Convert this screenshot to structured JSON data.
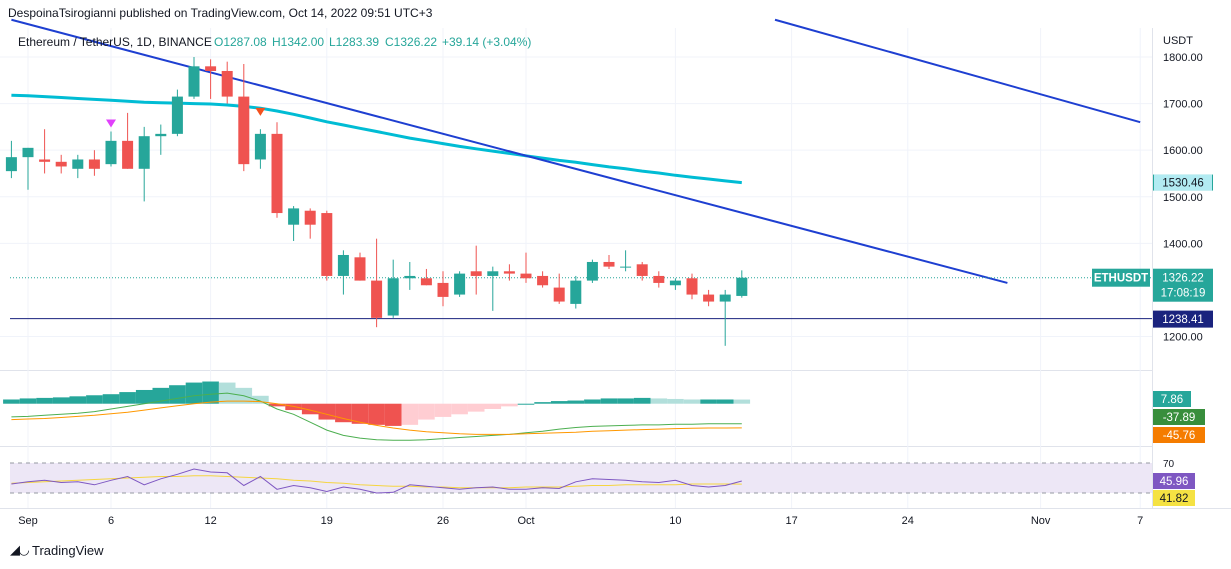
{
  "publisher_line": "DespoinaTsirogianni published on TradingView.com, Oct 14, 2022 09:51 UTC+3",
  "logo_text": "TradingView",
  "logo_icon": "tradingview-logo-icon",
  "colors": {
    "up": "#26a69a",
    "down": "#ef5350",
    "ma": "#00bcd4",
    "trendline": "#1e3fd1",
    "support": "#1a237e",
    "macd_line": "#4caf50",
    "signal_line": "#ff9800",
    "rsi_line": "#7e57c2",
    "rsi_ma": "#f5d540",
    "rsi_band": "#ede7f6"
  },
  "chart_data": {
    "type": "candlestick",
    "symbol_header": {
      "name": "Ethereum / TetherUS, 1D, BINANCE",
      "open": "O1287.08",
      "high": "H1342.00",
      "low": "L1283.39",
      "close": "C1326.22",
      "change": "+39.14 (+3.04%)"
    },
    "price_axis_title": "USDT",
    "y_ticks": [
      1800,
      1700,
      1600,
      1500,
      1400,
      1200
    ],
    "ylim": [
      1150,
      1880
    ],
    "x_tick_labels": [
      "Sep",
      "6",
      "12",
      "19",
      "26",
      "Oct",
      "10",
      "17",
      "24",
      "Nov",
      "7"
    ],
    "x_tick_dates": [
      "2022-09-01",
      "2022-09-06",
      "2022-09-12",
      "2022-09-19",
      "2022-09-26",
      "2022-10-01",
      "2022-10-10",
      "2022-10-17",
      "2022-10-24",
      "2022-11-01",
      "2022-11-07"
    ],
    "candles": [
      {
        "date": "2022-08-31",
        "o": 1555,
        "h": 1620,
        "l": 1540,
        "c": 1585
      },
      {
        "date": "2022-09-01",
        "o": 1585,
        "h": 1605,
        "l": 1515,
        "c": 1605
      },
      {
        "date": "2022-09-02",
        "o": 1580,
        "h": 1645,
        "l": 1550,
        "c": 1575
      },
      {
        "date": "2022-09-03",
        "o": 1575,
        "h": 1590,
        "l": 1550,
        "c": 1565
      },
      {
        "date": "2022-09-04",
        "o": 1560,
        "h": 1590,
        "l": 1540,
        "c": 1580
      },
      {
        "date": "2022-09-05",
        "o": 1580,
        "h": 1600,
        "l": 1545,
        "c": 1560
      },
      {
        "date": "2022-09-06",
        "o": 1570,
        "h": 1640,
        "l": 1565,
        "c": 1620
      },
      {
        "date": "2022-09-07",
        "o": 1620,
        "h": 1680,
        "l": 1560,
        "c": 1560
      },
      {
        "date": "2022-09-08",
        "o": 1560,
        "h": 1650,
        "l": 1490,
        "c": 1630
      },
      {
        "date": "2022-09-09",
        "o": 1630,
        "h": 1655,
        "l": 1590,
        "c": 1635
      },
      {
        "date": "2022-09-10",
        "o": 1635,
        "h": 1730,
        "l": 1630,
        "c": 1715
      },
      {
        "date": "2022-09-11",
        "o": 1715,
        "h": 1800,
        "l": 1710,
        "c": 1780
      },
      {
        "date": "2022-09-12",
        "o": 1780,
        "h": 1795,
        "l": 1710,
        "c": 1770
      },
      {
        "date": "2022-09-13",
        "o": 1770,
        "h": 1790,
        "l": 1700,
        "c": 1715
      },
      {
        "date": "2022-09-14",
        "o": 1715,
        "h": 1785,
        "l": 1555,
        "c": 1570
      },
      {
        "date": "2022-09-15",
        "o": 1580,
        "h": 1645,
        "l": 1560,
        "c": 1635
      },
      {
        "date": "2022-09-16",
        "o": 1635,
        "h": 1660,
        "l": 1455,
        "c": 1465
      },
      {
        "date": "2022-09-17",
        "o": 1440,
        "h": 1480,
        "l": 1405,
        "c": 1475
      },
      {
        "date": "2022-09-18",
        "o": 1470,
        "h": 1475,
        "l": 1410,
        "c": 1440
      },
      {
        "date": "2022-09-19",
        "o": 1465,
        "h": 1470,
        "l": 1320,
        "c": 1330
      },
      {
        "date": "2022-09-20",
        "o": 1330,
        "h": 1385,
        "l": 1290,
        "c": 1375
      },
      {
        "date": "2022-09-21",
        "o": 1370,
        "h": 1380,
        "l": 1320,
        "c": 1320
      },
      {
        "date": "2022-09-22",
        "o": 1320,
        "h": 1410,
        "l": 1220,
        "c": 1240
      },
      {
        "date": "2022-09-23",
        "o": 1245,
        "h": 1365,
        "l": 1240,
        "c": 1325
      },
      {
        "date": "2022-09-24",
        "o": 1325,
        "h": 1360,
        "l": 1300,
        "c": 1330
      },
      {
        "date": "2022-09-25",
        "o": 1325,
        "h": 1345,
        "l": 1310,
        "c": 1310
      },
      {
        "date": "2022-09-26",
        "o": 1315,
        "h": 1340,
        "l": 1265,
        "c": 1285
      },
      {
        "date": "2022-09-27",
        "o": 1290,
        "h": 1340,
        "l": 1285,
        "c": 1335
      },
      {
        "date": "2022-09-28",
        "o": 1340,
        "h": 1395,
        "l": 1290,
        "c": 1330
      },
      {
        "date": "2022-09-29",
        "o": 1330,
        "h": 1350,
        "l": 1255,
        "c": 1340
      },
      {
        "date": "2022-09-30",
        "o": 1340,
        "h": 1355,
        "l": 1320,
        "c": 1335
      },
      {
        "date": "2022-10-01",
        "o": 1335,
        "h": 1380,
        "l": 1315,
        "c": 1325
      },
      {
        "date": "2022-10-02",
        "o": 1330,
        "h": 1340,
        "l": 1305,
        "c": 1310
      },
      {
        "date": "2022-10-03",
        "o": 1305,
        "h": 1335,
        "l": 1270,
        "c": 1275
      },
      {
        "date": "2022-10-04",
        "o": 1270,
        "h": 1330,
        "l": 1260,
        "c": 1320
      },
      {
        "date": "2022-10-05",
        "o": 1320,
        "h": 1365,
        "l": 1315,
        "c": 1360
      },
      {
        "date": "2022-10-06",
        "o": 1360,
        "h": 1375,
        "l": 1345,
        "c": 1350
      },
      {
        "date": "2022-10-07",
        "o": 1350,
        "h": 1385,
        "l": 1340,
        "c": 1350
      },
      {
        "date": "2022-10-08",
        "o": 1355,
        "h": 1360,
        "l": 1320,
        "c": 1330
      },
      {
        "date": "2022-10-09",
        "o": 1330,
        "h": 1340,
        "l": 1305,
        "c": 1315
      },
      {
        "date": "2022-10-10",
        "o": 1310,
        "h": 1325,
        "l": 1300,
        "c": 1320
      },
      {
        "date": "2022-10-11",
        "o": 1325,
        "h": 1335,
        "l": 1280,
        "c": 1290
      },
      {
        "date": "2022-10-12",
        "o": 1290,
        "h": 1300,
        "l": 1265,
        "c": 1275
      },
      {
        "date": "2022-10-13",
        "o": 1275,
        "h": 1300,
        "l": 1180,
        "c": 1290
      },
      {
        "date": "2022-10-14",
        "o": 1287.08,
        "h": 1342,
        "l": 1283.39,
        "c": 1326.22
      }
    ],
    "moving_average": {
      "values": [
        1718,
        1717,
        1715,
        1713,
        1711,
        1709,
        1707,
        1705,
        1703,
        1702,
        1701,
        1700,
        1699,
        1697,
        1694,
        1690,
        1684,
        1677,
        1669,
        1661,
        1654,
        1647,
        1640,
        1633,
        1626,
        1620,
        1614,
        1608,
        1603,
        1598,
        1593,
        1588,
        1583,
        1578,
        1574,
        1569,
        1564,
        1560,
        1555,
        1551,
        1546,
        1542,
        1538,
        1534,
        1530.46
      ]
    },
    "trendlines": [
      {
        "start": {
          "date": "2022-08-31",
          "price": 1880
        },
        "end": {
          "date": "2022-10-30",
          "price": 1315
        }
      },
      {
        "start": {
          "date": "2022-10-16",
          "price": 1880
        },
        "end": {
          "date": "2022-11-07",
          "price": 1660
        }
      }
    ],
    "horizontal_support": 1238.41,
    "current_price_line": 1326.22,
    "markers": [
      {
        "date": "2022-09-06",
        "type": "up",
        "price": 1655
      },
      {
        "date": "2022-09-15",
        "type": "down",
        "price": 1680
      }
    ],
    "price_labels": {
      "ma": "1530.46",
      "symbol": "ETHUSDT",
      "last": "1326.22",
      "countdown": "17:08:19",
      "support": "1238.41"
    },
    "macd": {
      "labels": {
        "histogram": "7.86",
        "macd": "-37.89",
        "signal": "-45.76"
      },
      "histogram": [
        8,
        10,
        11,
        12,
        14,
        16,
        18,
        22,
        26,
        30,
        35,
        40,
        42,
        40,
        30,
        15,
        -5,
        -12,
        -20,
        -30,
        -35,
        -38,
        -40,
        -42,
        -40,
        -30,
        -25,
        -20,
        -15,
        -10,
        -5,
        0,
        3,
        5,
        6,
        8,
        10,
        10,
        11,
        10,
        9,
        8,
        8,
        8,
        7.86
      ],
      "macd_line": [
        -25,
        -24,
        -22,
        -20,
        -18,
        -15,
        -10,
        -5,
        0,
        5,
        10,
        15,
        18,
        20,
        15,
        5,
        -10,
        -20,
        -35,
        -50,
        -60,
        -65,
        -68,
        -69,
        -69,
        -68,
        -66,
        -64,
        -62,
        -60,
        -58,
        -55,
        -52,
        -48,
        -45,
        -43,
        -42,
        -41,
        -40,
        -40,
        -39,
        -39,
        -38,
        -38,
        -37.89
      ],
      "signal_line": [
        -30,
        -29,
        -28,
        -26,
        -24,
        -22,
        -19,
        -16,
        -12,
        -8,
        -4,
        0,
        3,
        5,
        5,
        4,
        0,
        -5,
        -12,
        -20,
        -28,
        -35,
        -41,
        -46,
        -50,
        -53,
        -55,
        -57,
        -58,
        -58,
        -58,
        -57,
        -56,
        -55,
        -54,
        -52,
        -51,
        -50,
        -49,
        -48,
        -47,
        -46.5,
        -46,
        -45.9,
        -45.76
      ],
      "ylim": [
        -80,
        60
      ]
    },
    "rsi": {
      "labels": {
        "rsi": "45.96",
        "rsi_ma": "41.82",
        "upper_band": "70",
        "lower_band": "30"
      },
      "upper_band": 70,
      "lower_band": 30,
      "values": [
        42,
        45,
        47,
        44,
        45,
        41,
        47,
        52,
        41,
        49,
        55,
        62,
        58,
        57,
        40,
        52,
        35,
        40,
        37,
        32,
        38,
        35,
        30,
        31,
        41,
        39,
        37,
        35,
        37,
        38,
        35,
        35,
        37,
        36,
        45,
        49,
        48,
        47,
        45,
        44,
        47,
        40,
        38,
        40,
        45.96
      ],
      "ma_values": [
        43,
        44,
        45,
        46,
        47,
        48,
        49,
        50,
        51,
        52,
        52,
        53,
        53,
        52,
        51,
        50,
        49,
        47,
        46,
        44,
        43,
        41,
        40,
        39,
        39,
        38,
        38,
        37,
        37,
        37,
        37,
        38,
        38,
        38,
        39,
        40,
        40,
        41,
        41,
        41,
        41,
        42,
        42,
        42,
        41.82
      ],
      "ylim": [
        10,
        90
      ]
    }
  }
}
